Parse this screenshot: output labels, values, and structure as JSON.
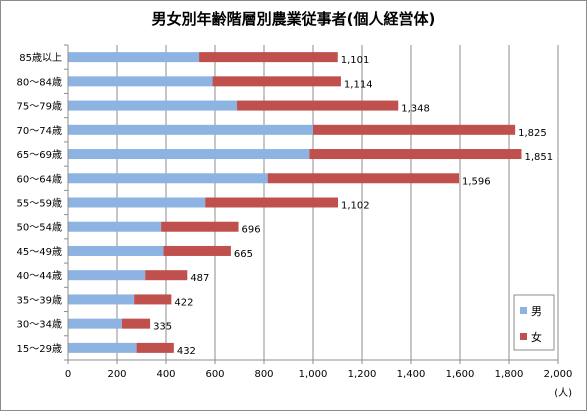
{
  "chart_data": {
    "type": "bar",
    "orientation": "horizontal",
    "stacked": true,
    "title": "男女別年齢階層別農業従事者(個人経営体)",
    "xunit": "(人)",
    "xlim": [
      0,
      2000
    ],
    "xticks": [
      0,
      200,
      400,
      600,
      800,
      1000,
      1200,
      1400,
      1600,
      1800,
      2000
    ],
    "xtick_labels": [
      "0",
      "200",
      "400",
      "600",
      "800",
      "1,000",
      "1,200",
      "1,400",
      "1,600",
      "1,800",
      "2,000"
    ],
    "grid": "vertical",
    "legend_position": "bottom-right",
    "categories": [
      "85歳以上",
      "80～84歳",
      "75～79歳",
      "70～74歳",
      "65～69歳",
      "60～64歳",
      "55～59歳",
      "50～54歳",
      "45～49歳",
      "40～44歳",
      "35～39歳",
      "30～34歳",
      "15～29歳"
    ],
    "series": [
      {
        "name": "男",
        "color": "#8db3e2",
        "values": [
          535,
          590,
          690,
          1000,
          985,
          815,
          560,
          380,
          390,
          315,
          270,
          220,
          280
        ]
      },
      {
        "name": "女",
        "color": "#c0504d",
        "values": [
          566,
          524,
          658,
          825,
          866,
          781,
          542,
          316,
          275,
          172,
          152,
          115,
          152
        ]
      }
    ],
    "totals": [
      1101,
      1114,
      1348,
      1825,
      1851,
      1596,
      1102,
      696,
      665,
      487,
      422,
      335,
      432
    ],
    "total_labels": [
      "1,101",
      "1,114",
      "1,348",
      "1,825",
      "1,851",
      "1,596",
      "1,102",
      "696",
      "665",
      "487",
      "422",
      "335",
      "432"
    ]
  }
}
